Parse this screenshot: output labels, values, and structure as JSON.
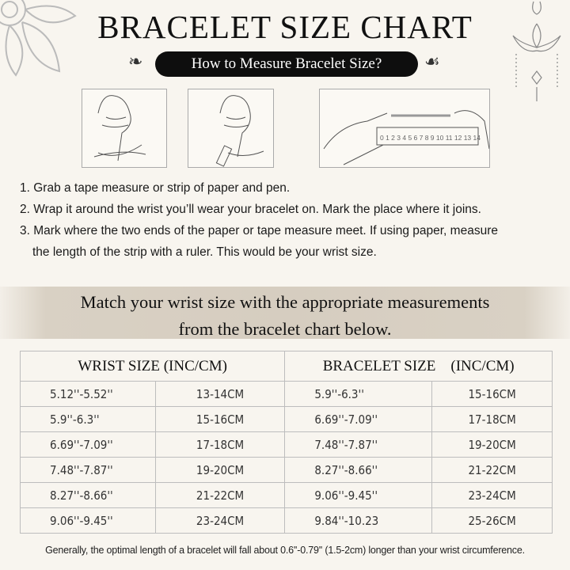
{
  "title": "BRACELET SIZE CHART",
  "subtitle": "How to Measure Bracelet Size?",
  "ruler_numbers": "0 1 2 3 4 5 6 7 8 9 10 11 12 13 14",
  "steps": [
    "1. Grab a tape measure or strip of paper and pen.",
    "2. Wrap it around the wrist you’ll wear your bracelet on. Mark the place where it joins.",
    "3. Mark where the two ends of the paper or tape measure meet. If using paper, measure",
    "the length of the strip with a ruler. This would be your wrist size."
  ],
  "band": {
    "line1": "Match your wrist size with the appropriate measurements",
    "line2": "from the bracelet chart below."
  },
  "table": {
    "headers": [
      "WRIST SIZE (INC/CM)",
      "BRACELET SIZE    (INC/CM)"
    ],
    "rows": [
      [
        "5.12''-5.52''",
        "13-14CM",
        "5.9''-6.3''",
        "15-16CM"
      ],
      [
        "5.9''-6.3''",
        "15-16CM",
        "6.69''-7.09''",
        "17-18CM"
      ],
      [
        "6.69''-7.09''",
        "17-18CM",
        "7.48''-7.87''",
        "19-20CM"
      ],
      [
        "7.48''-7.87''",
        "19-20CM",
        "8.27''-8.66''",
        "21-22CM"
      ],
      [
        "8.27''-8.66''",
        "21-22CM",
        "9.06''-9.45''",
        "23-24CM"
      ],
      [
        "9.06''-9.45''",
        "23-24CM",
        "9.84''-10.23",
        "25-26CM"
      ]
    ]
  },
  "footer": "Generally, the optimal length of a bracelet will fall about 0.6''-0.79'' (1.5-2cm) longer than your wrist circumference.",
  "colors": {
    "background": "#f8f5ef",
    "pill": "#0e0e0e",
    "band": "#d6cdc0",
    "border": "#bdbdbd"
  }
}
